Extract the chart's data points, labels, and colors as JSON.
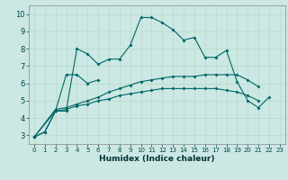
{
  "xlabel": "Humidex (Indice chaleur)",
  "bg_color": "#cce8e4",
  "grid_color": "#bbddcc",
  "line_color": "#006666",
  "xlim": [
    -0.5,
    23.5
  ],
  "ylim": [
    2.5,
    10.5
  ],
  "xticks": [
    0,
    1,
    2,
    3,
    4,
    5,
    6,
    7,
    8,
    9,
    10,
    11,
    12,
    13,
    14,
    15,
    16,
    17,
    18,
    19,
    20,
    21,
    22,
    23
  ],
  "yticks": [
    3,
    4,
    5,
    6,
    7,
    8,
    9,
    10
  ],
  "line1_x": [
    0,
    1,
    2,
    3,
    4,
    5,
    6,
    7,
    8,
    9,
    10,
    11,
    12,
    13,
    14,
    15,
    16,
    17,
    18,
    19,
    20,
    21,
    22
  ],
  "line1_y": [
    2.9,
    3.2,
    4.4,
    4.4,
    8.0,
    7.7,
    7.1,
    7.4,
    7.4,
    8.2,
    9.8,
    9.8,
    9.5,
    9.1,
    8.5,
    8.65,
    7.5,
    7.5,
    7.9,
    6.1,
    5.0,
    4.6,
    5.2
  ],
  "line2_x": [
    0,
    1,
    2,
    3,
    4,
    5,
    6
  ],
  "line2_y": [
    2.9,
    3.2,
    4.4,
    6.5,
    6.5,
    6.0,
    6.2
  ],
  "line3_x": [
    0,
    2,
    3,
    4,
    5,
    6,
    7,
    8,
    9,
    10,
    11,
    12,
    13,
    14,
    15,
    16,
    17,
    18,
    19,
    20,
    21
  ],
  "line3_y": [
    2.9,
    4.5,
    4.6,
    4.8,
    5.0,
    5.2,
    5.5,
    5.7,
    5.9,
    6.1,
    6.2,
    6.3,
    6.4,
    6.4,
    6.4,
    6.5,
    6.5,
    6.5,
    6.5,
    6.2,
    5.8
  ],
  "line4_x": [
    0,
    2,
    3,
    4,
    5,
    6,
    7,
    8,
    9,
    10,
    11,
    12,
    13,
    14,
    15,
    16,
    17,
    18,
    19,
    20,
    21
  ],
  "line4_y": [
    2.9,
    4.4,
    4.5,
    4.7,
    4.8,
    5.0,
    5.1,
    5.3,
    5.4,
    5.5,
    5.6,
    5.7,
    5.7,
    5.7,
    5.7,
    5.7,
    5.7,
    5.6,
    5.5,
    5.3,
    5.0
  ]
}
